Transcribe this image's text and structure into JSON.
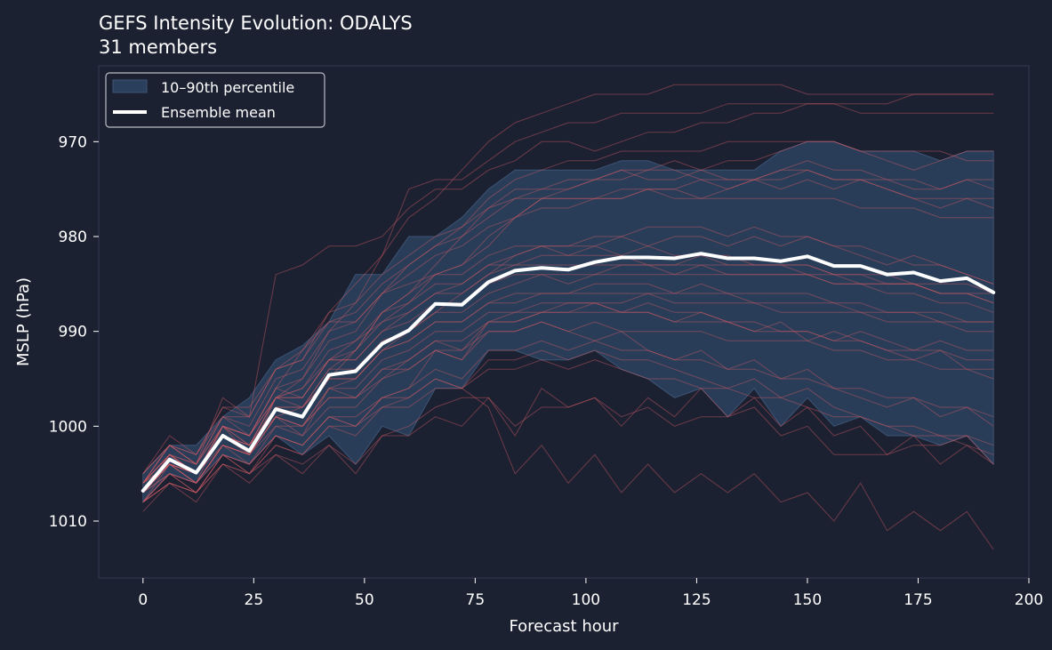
{
  "chart_data": {
    "type": "line",
    "title": "GEFS Intensity Evolution: ODALYS",
    "subtitle": "31 members",
    "xlabel": "Forecast hour",
    "ylabel": "MSLP (hPa)",
    "xlim": [
      -10,
      200
    ],
    "ylim": [
      1016,
      1011
    ],
    "y_axis_inverted": true,
    "x_ticks": [
      0,
      25,
      50,
      75,
      100,
      125,
      150,
      175,
      200
    ],
    "y_ticks": [
      970,
      980,
      990,
      1000,
      1010
    ],
    "grid": false,
    "legend": {
      "position": "top-left",
      "entries": [
        {
          "label": "10–90th percentile",
          "kind": "band"
        },
        {
          "label": "Ensemble mean",
          "kind": "line"
        }
      ]
    },
    "colors": {
      "background": "#1c2132",
      "band_fill": "#2a3f5c",
      "band_edge": "#3d5474",
      "member_line": "#d05a64",
      "mean_line": "#ffffff",
      "frame": "#2f374b",
      "text": "#ffffff"
    },
    "x": [
      0,
      6,
      12,
      18,
      24,
      30,
      36,
      42,
      48,
      54,
      60,
      66,
      72,
      78,
      84,
      90,
      96,
      102,
      108,
      114,
      120,
      126,
      132,
      138,
      144,
      150,
      156,
      162,
      168,
      174,
      180,
      186,
      192
    ],
    "ensemble_mean": [
      1006.8,
      1003.5,
      1004.9,
      1001.0,
      1002.6,
      998.2,
      999.0,
      994.6,
      994.2,
      991.3,
      989.9,
      987.1,
      987.2,
      984.8,
      983.6,
      983.3,
      983.5,
      982.7,
      982.2,
      982.2,
      982.3,
      981.8,
      982.3,
      982.3,
      982.6,
      982.1,
      983.1,
      983.1,
      984.0,
      983.8,
      984.7,
      984.4,
      985.9
    ],
    "percentile_10": [
      1005.0,
      1002.0,
      1002.0,
      999.0,
      997.0,
      993.0,
      991.5,
      989.0,
      984.0,
      984.0,
      980.0,
      980.0,
      978.0,
      975.0,
      973.0,
      973.0,
      973.0,
      973.0,
      972.0,
      972.0,
      973.0,
      973.0,
      973.0,
      973.0,
      971.0,
      970.0,
      970.0,
      971.0,
      971.0,
      971.0,
      972.0,
      971.0,
      971.0
    ],
    "percentile_90": [
      1008.0,
      1005.0,
      1006.0,
      1003.0,
      1004.0,
      1001.0,
      1003.0,
      1001.0,
      1004.0,
      1000.0,
      1001.0,
      996.0,
      996.0,
      992.0,
      992.0,
      993.0,
      993.0,
      992.0,
      994.0,
      995.0,
      997.0,
      996.0,
      999.0,
      996.0,
      1000.0,
      997.0,
      1000.0,
      999.0,
      1001.0,
      1001.0,
      1002.0,
      1001.0,
      1004.0
    ],
    "members": [
      [
        1007,
        1004,
        1006,
        1000,
        1003,
        997,
        998,
        995,
        992,
        988,
        986,
        984,
        983,
        980,
        978,
        976,
        976,
        976,
        975,
        975,
        975,
        976,
        975,
        974,
        975,
        974,
        975,
        974,
        975,
        976,
        977,
        976,
        976
      ],
      [
        1006,
        1003,
        1005,
        1001,
        1002,
        999,
        1000,
        996,
        995,
        992,
        990,
        988,
        986,
        984,
        982,
        981,
        982,
        981,
        980,
        981,
        980,
        980,
        981,
        980,
        981,
        980,
        981,
        982,
        983,
        982,
        983,
        984,
        985
      ],
      [
        1008,
        1005,
        1006,
        1003,
        1004,
        1001,
        1002,
        999,
        1000,
        997,
        996,
        992,
        993,
        990,
        990,
        989,
        990,
        991,
        990,
        992,
        993,
        992,
        994,
        993,
        995,
        994,
        996,
        997,
        998,
        997,
        999,
        998,
        1000
      ],
      [
        1005,
        1002,
        1004,
        999,
        1001,
        996,
        997,
        993,
        991,
        989,
        987,
        984,
        983,
        981,
        978,
        976,
        975,
        974,
        973,
        974,
        974,
        973,
        974,
        974,
        973,
        972,
        973,
        973,
        974,
        974,
        975,
        974,
        975
      ],
      [
        1007,
        1003,
        1005,
        1002,
        1003,
        999,
        1001,
        996,
        997,
        995,
        993,
        991,
        992,
        989,
        988,
        988,
        987,
        987,
        988,
        987,
        988,
        988,
        989,
        990,
        989,
        991,
        990,
        991,
        992,
        993,
        992,
        994,
        995
      ],
      [
        1006,
        1004,
        1005,
        1000,
        1002,
        997,
        997,
        993,
        993,
        990,
        988,
        986,
        985,
        983,
        982,
        981,
        981,
        980,
        980,
        979,
        979,
        979,
        980,
        979,
        980,
        980,
        981,
        981,
        982,
        983,
        983,
        984,
        985
      ],
      [
        1009,
        1006,
        1007,
        1004,
        1005,
        1003,
        1004,
        1002,
        1005,
        1001,
        1000,
        998,
        997,
        997,
        1001,
        996,
        998,
        997,
        1000,
        997,
        999,
        996,
        999,
        997,
        1000,
        998,
        1001,
        1000,
        1003,
        1001,
        1004,
        1002,
        1004
      ],
      [
        1008,
        1006,
        1008,
        1004,
        1006,
        1003,
        1005,
        1002,
        1004,
        1001,
        1001,
        999,
        1000,
        997,
        1000,
        998,
        998,
        997,
        999,
        998,
        1000,
        999,
        999,
        998,
        1001,
        1000,
        1003,
        1003,
        1003,
        1002,
        1002,
        1001,
        1004
      ],
      [
        1007,
        1005,
        1007,
        1003,
        1005,
        1002,
        1003,
        1000,
        1001,
        998,
        997,
        995,
        996,
        993,
        993,
        992,
        993,
        992,
        993,
        993,
        994,
        995,
        996,
        995,
        997,
        996,
        998,
        999,
        1000,
        1001,
        1001,
        1002,
        1003
      ],
      [
        1006,
        1002,
        1004,
        997,
        999,
        984,
        983,
        981,
        981,
        980,
        977,
        975,
        975,
        973,
        972,
        970,
        970,
        971,
        970,
        969,
        969,
        968,
        968,
        967,
        967,
        966,
        966,
        966,
        966,
        965,
        965,
        965,
        965
      ],
      [
        1006,
        1004,
        1005,
        1000,
        1001,
        996,
        992,
        988,
        985,
        982,
        975,
        974,
        974,
        972,
        970,
        969,
        968,
        968,
        967,
        967,
        967,
        967,
        966,
        966,
        966,
        966,
        966,
        967,
        967,
        967,
        967,
        967,
        967
      ],
      [
        1007,
        1003,
        1005,
        1001,
        1002,
        997,
        995,
        990,
        987,
        982,
        978,
        976,
        973,
        970,
        968,
        967,
        966,
        965,
        965,
        965,
        964,
        964,
        964,
        964,
        964,
        965,
        965,
        965,
        965,
        965,
        965,
        965,
        965
      ],
      [
        1008,
        1005,
        1006,
        1002,
        1003,
        999,
        998,
        994,
        992,
        988,
        986,
        983,
        980,
        977,
        975,
        975,
        975,
        974,
        974,
        973,
        973,
        974,
        974,
        974,
        973,
        973,
        974,
        974,
        975,
        976,
        976,
        976,
        977
      ],
      [
        1006,
        1002,
        1003,
        999,
        999,
        994,
        993,
        989,
        988,
        985,
        983,
        981,
        980,
        978,
        976,
        975,
        974,
        974,
        973,
        973,
        972,
        973,
        972,
        972,
        971,
        970,
        970,
        971,
        972,
        973,
        972,
        971,
        971
      ],
      [
        1005,
        1001,
        1003,
        998,
        998,
        994,
        992,
        989,
        989,
        986,
        985,
        984,
        984,
        982,
        981,
        981,
        981,
        981,
        982,
        983,
        983,
        982,
        983,
        983,
        983,
        984,
        984,
        985,
        985,
        985,
        986,
        986,
        987
      ],
      [
        1007,
        1004,
        1006,
        1002,
        1004,
        1000,
        1001,
        998,
        998,
        995,
        994,
        992,
        993,
        989,
        989,
        988,
        988,
        987,
        988,
        988,
        989,
        988,
        989,
        989,
        990,
        990,
        991,
        990,
        991,
        992,
        991,
        992,
        992
      ],
      [
        1008,
        1006,
        1007,
        1004,
        1005,
        1002,
        1003,
        1000,
        1000,
        998,
        998,
        996,
        996,
        994,
        994,
        993,
        994,
        993,
        994,
        995,
        995,
        996,
        996,
        997,
        997,
        998,
        999,
        999,
        1000,
        1000,
        1001,
        1001,
        1002
      ],
      [
        1006,
        1003,
        1004,
        1000,
        1001,
        997,
        996,
        992,
        991,
        988,
        987,
        985,
        985,
        983,
        983,
        982,
        982,
        982,
        982,
        981,
        982,
        982,
        982,
        983,
        983,
        983,
        984,
        984,
        985,
        985,
        986,
        986,
        987
      ],
      [
        1007,
        1004,
        1005,
        1001,
        1002,
        998,
        998,
        995,
        995,
        992,
        991,
        989,
        989,
        987,
        986,
        986,
        986,
        985,
        985,
        985,
        986,
        985,
        986,
        986,
        986,
        986,
        987,
        987,
        988,
        988,
        988,
        989,
        989
      ],
      [
        1008,
        1006,
        1007,
        1003,
        1004,
        1001,
        1002,
        999,
        999,
        997,
        997,
        995,
        996,
        998,
        1005,
        1002,
        1006,
        1003,
        1007,
        1004,
        1007,
        1005,
        1007,
        1005,
        1008,
        1007,
        1010,
        1006,
        1011,
        1009,
        1011,
        1009,
        1013
      ],
      [
        1006,
        1003,
        1004,
        1000,
        1001,
        996,
        995,
        991,
        990,
        986,
        984,
        982,
        981,
        979,
        978,
        977,
        977,
        976,
        976,
        975,
        975,
        974,
        975,
        974,
        974,
        973,
        974,
        974,
        974,
        975,
        975,
        974,
        974
      ],
      [
        1007,
        1004,
        1005,
        1001,
        1002,
        998,
        998,
        994,
        994,
        991,
        990,
        988,
        988,
        986,
        985,
        984,
        985,
        984,
        984,
        984,
        984,
        983,
        984,
        984,
        984,
        984,
        985,
        985,
        986,
        986,
        987,
        987,
        988
      ],
      [
        1005,
        1002,
        1004,
        999,
        1000,
        995,
        994,
        990,
        989,
        986,
        983,
        981,
        979,
        976,
        974,
        973,
        972,
        972,
        971,
        971,
        971,
        971,
        970,
        970,
        970,
        970,
        970,
        971,
        971,
        971,
        971,
        972,
        972
      ],
      [
        1008,
        1005,
        1007,
        1003,
        1005,
        1001,
        1002,
        999,
        1000,
        997,
        996,
        994,
        995,
        992,
        992,
        991,
        992,
        991,
        992,
        992,
        993,
        993,
        994,
        994,
        995,
        995,
        996,
        996,
        997,
        997,
        998,
        998,
        999
      ],
      [
        1006,
        1003,
        1005,
        1000,
        1001,
        997,
        996,
        993,
        992,
        989,
        988,
        986,
        986,
        984,
        983,
        983,
        983,
        983,
        983,
        983,
        983,
        983,
        983,
        983,
        983,
        983,
        984,
        984,
        984,
        985,
        985,
        985,
        986
      ],
      [
        1007,
        1005,
        1006,
        1002,
        1003,
        1000,
        1000,
        997,
        997,
        994,
        993,
        991,
        991,
        989,
        989,
        988,
        988,
        988,
        988,
        988,
        989,
        989,
        989,
        990,
        990,
        990,
        991,
        991,
        992,
        992,
        992,
        993,
        993
      ],
      [
        1006,
        1002,
        1003,
        998,
        999,
        994,
        993,
        988,
        987,
        984,
        982,
        980,
        979,
        977,
        976,
        976,
        976,
        976,
        976,
        975,
        976,
        976,
        976,
        976,
        976,
        976,
        976,
        977,
        977,
        977,
        978,
        978,
        978
      ],
      [
        1007,
        1004,
        1006,
        1002,
        1003,
        999,
        1000,
        996,
        996,
        993,
        992,
        990,
        990,
        988,
        988,
        987,
        987,
        987,
        987,
        986,
        987,
        987,
        987,
        987,
        988,
        988,
        988,
        988,
        989,
        989,
        989,
        990,
        990
      ],
      [
        1006,
        1003,
        1005,
        1000,
        1002,
        997,
        997,
        993,
        993,
        990,
        989,
        987,
        987,
        985,
        984,
        984,
        984,
        984,
        983,
        983,
        984,
        984,
        984,
        984,
        984,
        984,
        985,
        985,
        985,
        985,
        986,
        986,
        986
      ],
      [
        1008,
        1004,
        1006,
        1002,
        1003,
        999,
        1000,
        997,
        997,
        994,
        994,
        992,
        992,
        990,
        990,
        989,
        990,
        989,
        990,
        990,
        990,
        990,
        991,
        991,
        991,
        991,
        992,
        992,
        993,
        993,
        994,
        994,
        994
      ],
      [
        1007,
        1004,
        1005,
        1001,
        1003,
        998,
        999,
        995,
        995,
        992,
        991,
        989,
        989,
        987,
        987,
        986,
        986,
        986,
        986,
        986,
        986,
        986,
        986,
        987,
        987,
        987,
        987,
        988,
        988,
        988,
        989,
        989,
        989
      ]
    ]
  }
}
